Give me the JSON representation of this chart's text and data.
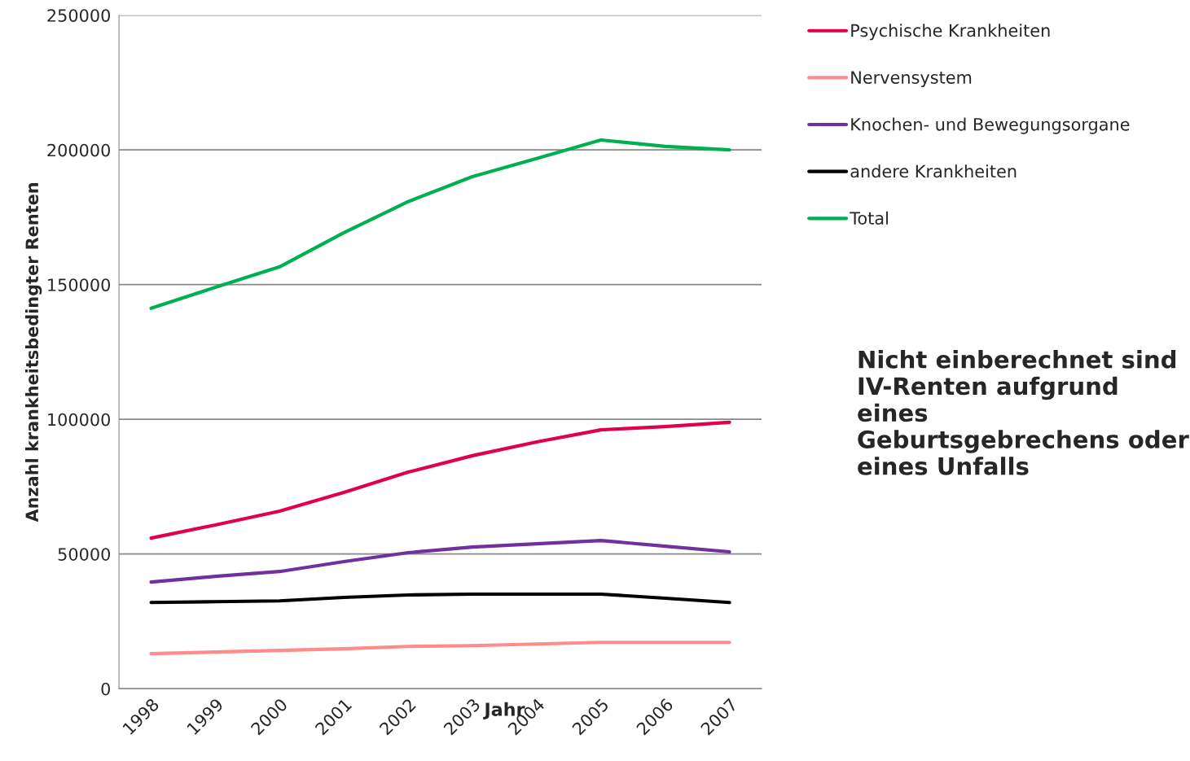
{
  "chart_data": {
    "type": "line",
    "xlabel": "Jahr",
    "ylabel": "Anzahl krankheitsbedingter Renten",
    "categories": [
      "1998",
      "1999",
      "2000",
      "2001",
      "2002",
      "2003",
      "2004",
      "2005",
      "2006",
      "2007"
    ],
    "series": [
      {
        "name": "Psychische Krankheiten",
        "color": "#e0004d",
        "values": [
          55900,
          60800,
          65900,
          72900,
          80400,
          86500,
          91600,
          96100,
          97300,
          98900
        ]
      },
      {
        "name": "Nervensystem",
        "color": "#ff8c8c",
        "values": [
          13000,
          13600,
          14200,
          14800,
          15700,
          16000,
          16600,
          17200,
          17200,
          17200
        ]
      },
      {
        "name": "Knochen- und Bewegungsorgane",
        "color": "#7030a0",
        "values": [
          39600,
          41700,
          43500,
          47200,
          50500,
          52600,
          53800,
          55000,
          52900,
          50800
        ]
      },
      {
        "name": "andere Krankheiten",
        "color": "#000000",
        "values": [
          32000,
          32300,
          32600,
          33900,
          34800,
          35100,
          35100,
          35100,
          33600,
          32000
        ]
      },
      {
        "name": "Total",
        "color": "#00b050",
        "values": [
          141200,
          149000,
          156600,
          169300,
          180800,
          190100,
          196800,
          203700,
          201300,
          200000
        ]
      }
    ],
    "ylim": [
      0,
      250000
    ],
    "yticks": [
      0,
      50000,
      100000,
      150000,
      200000,
      250000
    ],
    "grid": "y",
    "legend": "top right",
    "marker": "none",
    "line_style": "solid",
    "annotations": [
      "Nicht einberechnet sind IV-Renten aufgrund eines Geburtsgebrechens oder eines Unfalls"
    ]
  }
}
